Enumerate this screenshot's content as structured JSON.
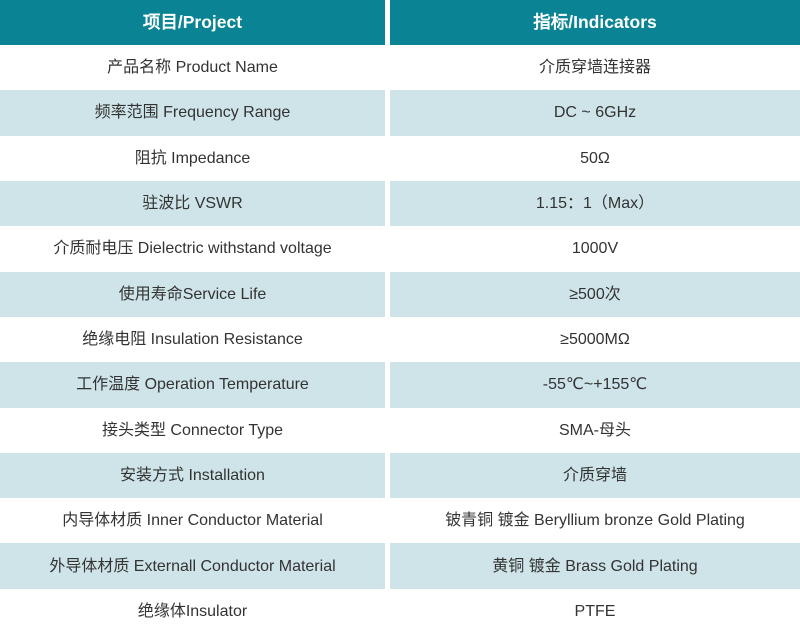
{
  "table": {
    "header": {
      "project": "项目/Project",
      "indicators": "指标/Indicators"
    },
    "rows": [
      {
        "project": "产品名称 Product Name",
        "indicator": "介质穿墙连接器"
      },
      {
        "project": "频率范围 Frequency Range",
        "indicator": "DC ~ 6GHz"
      },
      {
        "project": "阻抗 Impedance",
        "indicator": "50Ω"
      },
      {
        "project": "驻波比 VSWR",
        "indicator": "1.15：1（Max）"
      },
      {
        "project": "介质耐电压 Dielectric withstand voltage",
        "indicator": "1000V"
      },
      {
        "project": "使用寿命Service Life",
        "indicator": "≥500次"
      },
      {
        "project": "绝缘电阻 Insulation Resistance",
        "indicator": "≥5000MΩ"
      },
      {
        "project": "工作温度 Operation Temperature",
        "indicator": "-55℃~+155℃"
      },
      {
        "project": "接头类型 Connector Type",
        "indicator": "SMA-母头"
      },
      {
        "project": "安装方式 Installation",
        "indicator": "介质穿墙"
      },
      {
        "project": "内导体材质 Inner Conductor Material",
        "indicator": "铍青铜 镀金 Beryllium bronze Gold Plating"
      },
      {
        "project": "外导体材质 Externall Conductor Material",
        "indicator": "黄铜 镀金 Brass Gold Plating"
      },
      {
        "project": "绝缘体Insulator",
        "indicator": "PTFE"
      }
    ],
    "colors": {
      "header_bg": "#0A8494",
      "header_text": "#FFFFFF",
      "alt_row_bg": "#CEE4E9",
      "row_bg": "#FFFFFF",
      "body_text": "#333333",
      "divider": "#FFFFFF"
    }
  }
}
